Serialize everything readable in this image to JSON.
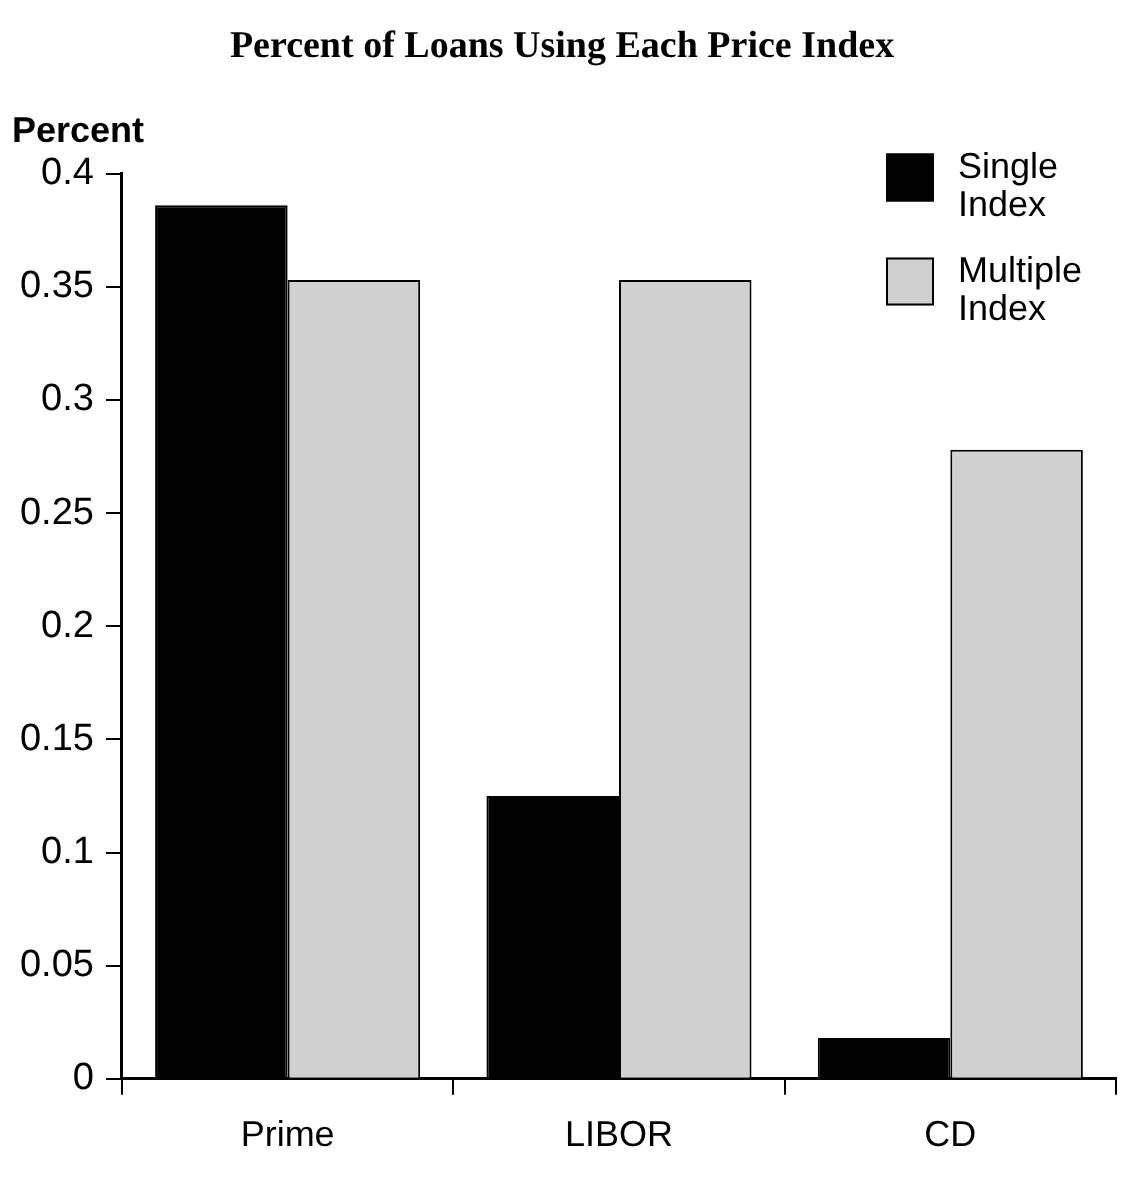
{
  "chart_data": {
    "type": "bar",
    "title": "Percent of Loans Using Each Price Index",
    "ylabel": "Percent",
    "categories": [
      "Prime",
      "LIBOR",
      "CD"
    ],
    "series": [
      {
        "name": "Single Index",
        "color": "#000000",
        "values": [
          0.386,
          0.125,
          0.018
        ]
      },
      {
        "name": "Multiple Index",
        "color": "#d0d0d0",
        "values": [
          0.353,
          0.353,
          0.278
        ]
      }
    ],
    "ylim": [
      0,
      0.4
    ],
    "yticks": [
      0,
      0.05,
      0.1,
      0.15,
      0.2,
      0.25,
      0.3,
      0.35,
      0.4
    ],
    "grid": false,
    "legend": "top right"
  }
}
